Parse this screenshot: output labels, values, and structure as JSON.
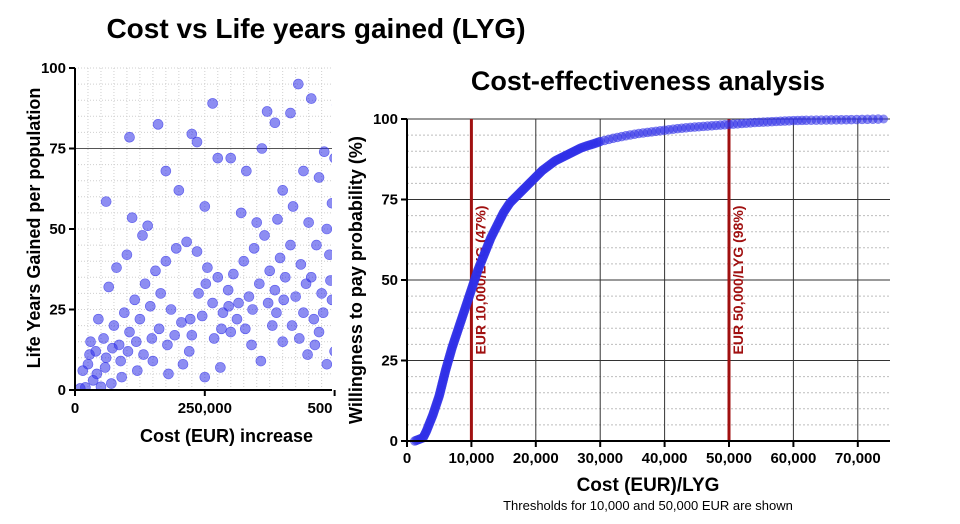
{
  "chart_data": [
    {
      "type": "scatter",
      "title": "Cost vs Life years gained (LYG)",
      "xlabel": "Cost (EUR) increase",
      "ylabel": "Life Years Gained per population",
      "xlim": [
        0,
        520000
      ],
      "ylim": [
        0,
        100
      ],
      "x_ticks": [
        0,
        250000,
        500000
      ],
      "x_tick_labels": [
        "0",
        "250,000",
        "500,000"
      ],
      "y_ticks": [
        0,
        25,
        50,
        75,
        100
      ],
      "y_tick_labels": [
        "0",
        "25",
        "50",
        "75",
        "100"
      ],
      "grid": true,
      "legend": "none",
      "point_color": "#2f2fe8",
      "points": [
        [
          105000,
          78.5
        ],
        [
          160000,
          82.5
        ],
        [
          265000,
          89
        ],
        [
          385000,
          83
        ],
        [
          430000,
          95
        ],
        [
          455000,
          90.5
        ],
        [
          415000,
          86
        ],
        [
          370000,
          86.5
        ],
        [
          505000,
          88.5
        ],
        [
          512000,
          94
        ],
        [
          225000,
          79.5
        ],
        [
          235000,
          77
        ],
        [
          275000,
          72
        ],
        [
          175000,
          68
        ],
        [
          60000,
          58.5
        ],
        [
          110000,
          53.5
        ],
        [
          300000,
          72
        ],
        [
          330000,
          68
        ],
        [
          360000,
          75
        ],
        [
          400000,
          62
        ],
        [
          440000,
          68
        ],
        [
          470000,
          66
        ],
        [
          495000,
          58
        ],
        [
          510000,
          52
        ],
        [
          480000,
          74
        ],
        [
          500000,
          72
        ],
        [
          200000,
          62
        ],
        [
          250000,
          57
        ],
        [
          140000,
          51
        ],
        [
          130000,
          48
        ],
        [
          320000,
          55
        ],
        [
          350000,
          52
        ],
        [
          390000,
          53
        ],
        [
          420000,
          57
        ],
        [
          450000,
          52
        ],
        [
          490000,
          42
        ],
        [
          515000,
          38
        ],
        [
          505000,
          25
        ],
        [
          500000,
          12
        ],
        [
          485000,
          8
        ],
        [
          470000,
          18
        ],
        [
          460000,
          22
        ],
        [
          440000,
          24
        ],
        [
          400000,
          15
        ],
        [
          380000,
          20
        ],
        [
          340000,
          14
        ],
        [
          300000,
          18
        ],
        [
          280000,
          7
        ],
        [
          250000,
          4
        ],
        [
          220000,
          12
        ],
        [
          180000,
          5
        ],
        [
          150000,
          9
        ],
        [
          120000,
          6
        ],
        [
          90000,
          4
        ],
        [
          70000,
          2
        ],
        [
          50000,
          1
        ],
        [
          35000,
          3
        ],
        [
          20000,
          0.8
        ],
        [
          10000,
          0.5
        ],
        [
          25000,
          8
        ],
        [
          40000,
          12
        ],
        [
          55000,
          16
        ],
        [
          75000,
          20
        ],
        [
          95000,
          24
        ],
        [
          115000,
          28
        ],
        [
          135000,
          33
        ],
        [
          155000,
          37
        ],
        [
          175000,
          40
        ],
        [
          195000,
          44
        ],
        [
          215000,
          46
        ],
        [
          235000,
          43
        ],
        [
          255000,
          38
        ],
        [
          275000,
          35
        ],
        [
          295000,
          31
        ],
        [
          315000,
          27
        ],
        [
          335000,
          29
        ],
        [
          355000,
          33
        ],
        [
          375000,
          37
        ],
        [
          395000,
          41
        ],
        [
          415000,
          45
        ],
        [
          435000,
          39
        ],
        [
          455000,
          35
        ],
        [
          475000,
          30
        ],
        [
          495000,
          28
        ],
        [
          65000,
          32
        ],
        [
          80000,
          38
        ],
        [
          100000,
          42
        ],
        [
          45000,
          22
        ],
        [
          30000,
          15
        ],
        [
          60000,
          10
        ],
        [
          85000,
          14
        ],
        [
          105000,
          18
        ],
        [
          125000,
          22
        ],
        [
          145000,
          26
        ],
        [
          165000,
          30
        ],
        [
          185000,
          25
        ],
        [
          205000,
          21
        ],
        [
          225000,
          17
        ],
        [
          245000,
          23
        ],
        [
          265000,
          27
        ],
        [
          285000,
          24
        ],
        [
          305000,
          36
        ],
        [
          325000,
          40
        ],
        [
          345000,
          44
        ],
        [
          365000,
          48
        ],
        [
          385000,
          31
        ],
        [
          405000,
          35
        ],
        [
          425000,
          29
        ],
        [
          445000,
          33
        ],
        [
          465000,
          45
        ],
        [
          485000,
          50
        ],
        [
          15000,
          6
        ],
        [
          28000,
          11
        ],
        [
          42000,
          5
        ],
        [
          58000,
          7
        ],
        [
          72000,
          13
        ],
        [
          88000,
          9
        ],
        [
          102000,
          12
        ],
        [
          118000,
          15
        ],
        [
          132000,
          11
        ],
        [
          148000,
          16
        ],
        [
          162000,
          19
        ],
        [
          178000,
          14
        ],
        [
          192000,
          17
        ],
        [
          208000,
          8
        ],
        [
          222000,
          22
        ],
        [
          238000,
          30
        ],
        [
          252000,
          33
        ],
        [
          268000,
          16
        ],
        [
          282000,
          19
        ],
        [
          296000,
          26
        ],
        [
          312000,
          22
        ],
        [
          328000,
          19
        ],
        [
          342000,
          25
        ],
        [
          358000,
          9
        ],
        [
          372000,
          27
        ],
        [
          388000,
          24
        ],
        [
          402000,
          28
        ],
        [
          418000,
          20
        ],
        [
          432000,
          16
        ],
        [
          448000,
          11
        ],
        [
          462000,
          14
        ],
        [
          478000,
          24
        ],
        [
          492000,
          34
        ],
        [
          508000,
          45
        ]
      ]
    },
    {
      "type": "scatter",
      "title": "Cost-effectiveness analysis",
      "xlabel": "Cost (EUR)/LYG",
      "ylabel": "Willingness to pay probability (%)",
      "subtitle": "Thresholds for 10,000 and 50,000 EUR are shown",
      "xlim": [
        0,
        75000
      ],
      "ylim": [
        0,
        100
      ],
      "x_ticks": [
        0,
        10000,
        20000,
        30000,
        40000,
        50000,
        60000,
        70000
      ],
      "x_tick_labels": [
        "0",
        "10,000",
        "20,000",
        "30,000",
        "40,000",
        "50,000",
        "60,000",
        "70,000"
      ],
      "y_ticks": [
        0,
        25,
        50,
        75,
        100
      ],
      "y_tick_labels": [
        "0",
        "25",
        "50",
        "75",
        "100"
      ],
      "grid": true,
      "legend": "none",
      "point_color": "#2f2fe8",
      "threshold_color": "#a01010",
      "thresholds": [
        {
          "x": 10000,
          "label": "EUR 10,000/LYG (47%)"
        },
        {
          "x": 50000,
          "label": "EUR 50,000/LYG (98%)"
        }
      ],
      "curve": [
        [
          1200,
          0
        ],
        [
          2500,
          1
        ],
        [
          3000,
          3
        ],
        [
          4000,
          8
        ],
        [
          5000,
          14
        ],
        [
          6000,
          22
        ],
        [
          7000,
          29
        ],
        [
          8000,
          35
        ],
        [
          9000,
          41
        ],
        [
          10000,
          47
        ],
        [
          11000,
          53
        ],
        [
          12000,
          58
        ],
        [
          13000,
          63
        ],
        [
          14000,
          67
        ],
        [
          15000,
          71
        ],
        [
          16000,
          74
        ],
        [
          17000,
          76
        ],
        [
          18000,
          78
        ],
        [
          19000,
          80
        ],
        [
          20000,
          82
        ],
        [
          21000,
          84
        ],
        [
          22000,
          85.5
        ],
        [
          23000,
          87
        ],
        [
          24000,
          88
        ],
        [
          25000,
          89
        ],
        [
          26000,
          90
        ],
        [
          27000,
          91
        ],
        [
          28000,
          91.7
        ],
        [
          29000,
          92.3
        ],
        [
          30000,
          93
        ],
        [
          32000,
          94
        ],
        [
          34000,
          94.8
        ],
        [
          36000,
          95.5
        ],
        [
          38000,
          96
        ],
        [
          40000,
          96.5
        ],
        [
          42000,
          97
        ],
        [
          44000,
          97.4
        ],
        [
          46000,
          97.7
        ],
        [
          48000,
          98
        ],
        [
          50000,
          98.3
        ],
        [
          52000,
          98.6
        ],
        [
          54000,
          98.9
        ],
        [
          56000,
          99.1
        ],
        [
          58000,
          99.3
        ],
        [
          60000,
          99.5
        ],
        [
          62000,
          99.6
        ],
        [
          69000,
          99.8
        ],
        [
          74000,
          100
        ]
      ]
    }
  ]
}
